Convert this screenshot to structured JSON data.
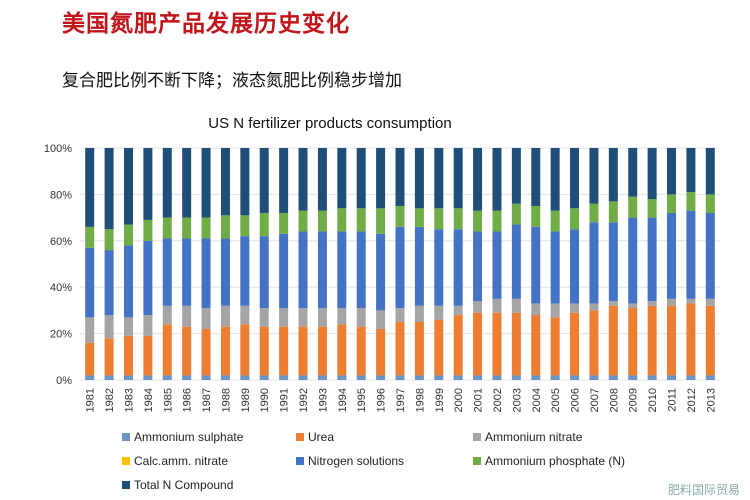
{
  "slide": {
    "title": "美国氮肥产品发展历史变化",
    "subtitle": "复合肥比例不断下降；液态氮肥比例稳步增加",
    "logo_text": "肥料国际贸易"
  },
  "chart_data": {
    "type": "bar",
    "stacked": true,
    "percent": true,
    "title": "US N fertilizer products consumption",
    "xlabel": "",
    "ylabel": "",
    "ylim": [
      0,
      100
    ],
    "yticks": [
      "0%",
      "20%",
      "40%",
      "60%",
      "80%",
      "100%"
    ],
    "grid": true,
    "legend_position": "bottom",
    "categories": [
      "1981",
      "1982",
      "1983",
      "1984",
      "1985",
      "1986",
      "1987",
      "1988",
      "1989",
      "1990",
      "1991",
      "1992",
      "1993",
      "1994",
      "1995",
      "1996",
      "1997",
      "1998",
      "1999",
      "2000",
      "2001",
      "2002",
      "2003",
      "2004",
      "2005",
      "2006",
      "2007",
      "2008",
      "2009",
      "2010",
      "2011",
      "2012",
      "2013"
    ],
    "series": [
      {
        "name": "Ammonium sulphate",
        "color": "#6a94c4",
        "values": [
          2,
          2,
          2,
          2,
          2,
          2,
          2,
          2,
          2,
          2,
          2,
          2,
          2,
          2,
          2,
          2,
          2,
          2,
          2,
          2,
          2,
          2,
          2,
          2,
          2,
          2,
          2,
          2,
          2,
          2,
          2,
          2,
          2
        ]
      },
      {
        "name": "Urea",
        "color": "#ed7d31",
        "values": [
          14,
          16,
          17,
          17,
          22,
          21,
          20,
          21,
          22,
          21,
          21,
          21,
          21,
          22,
          21,
          20,
          23,
          23,
          24,
          26,
          27,
          27,
          27,
          26,
          25,
          27,
          28,
          30,
          29,
          30,
          30,
          31,
          30
        ]
      },
      {
        "name": "Ammonium nitrate",
        "color": "#a5a5a5",
        "values": [
          11,
          10,
          8,
          9,
          8,
          9,
          9,
          9,
          8,
          8,
          8,
          8,
          8,
          7,
          8,
          8,
          6,
          7,
          6,
          4,
          5,
          6,
          6,
          5,
          6,
          4,
          3,
          2,
          2,
          2,
          3,
          2,
          3
        ]
      },
      {
        "name": "Calc.amm. nitrate",
        "color": "#ffc000",
        "values": [
          0,
          0,
          0,
          0,
          0,
          0,
          0,
          0,
          0,
          0,
          0,
          0,
          0,
          0,
          0,
          0,
          0,
          0,
          0,
          0,
          0,
          0,
          0,
          0,
          0,
          0,
          0,
          0,
          0,
          0,
          0,
          0,
          0
        ]
      },
      {
        "name": "Nitrogen solutions",
        "color": "#4472c4",
        "values": [
          30,
          28,
          31,
          32,
          29,
          29,
          30,
          29,
          30,
          31,
          32,
          33,
          33,
          33,
          33,
          33,
          35,
          34,
          33,
          33,
          30,
          29,
          32,
          33,
          31,
          32,
          35,
          34,
          37,
          36,
          37,
          38,
          37
        ]
      },
      {
        "name": "Ammonium phosphate (N)",
        "color": "#70ad47",
        "values": [
          9,
          9,
          9,
          9,
          9,
          9,
          9,
          10,
          9,
          10,
          9,
          9,
          9,
          10,
          10,
          11,
          9,
          8,
          9,
          9,
          9,
          9,
          9,
          9,
          9,
          9,
          8,
          9,
          9,
          8,
          8,
          8,
          8
        ]
      },
      {
        "name": "Total N Compound",
        "color": "#1f4e79",
        "values": [
          34,
          35,
          33,
          31,
          30,
          30,
          30,
          29,
          29,
          28,
          28,
          27,
          27,
          26,
          26,
          26,
          25,
          26,
          26,
          26,
          27,
          27,
          24,
          25,
          27,
          26,
          24,
          23,
          21,
          22,
          20,
          19,
          20
        ]
      }
    ]
  }
}
